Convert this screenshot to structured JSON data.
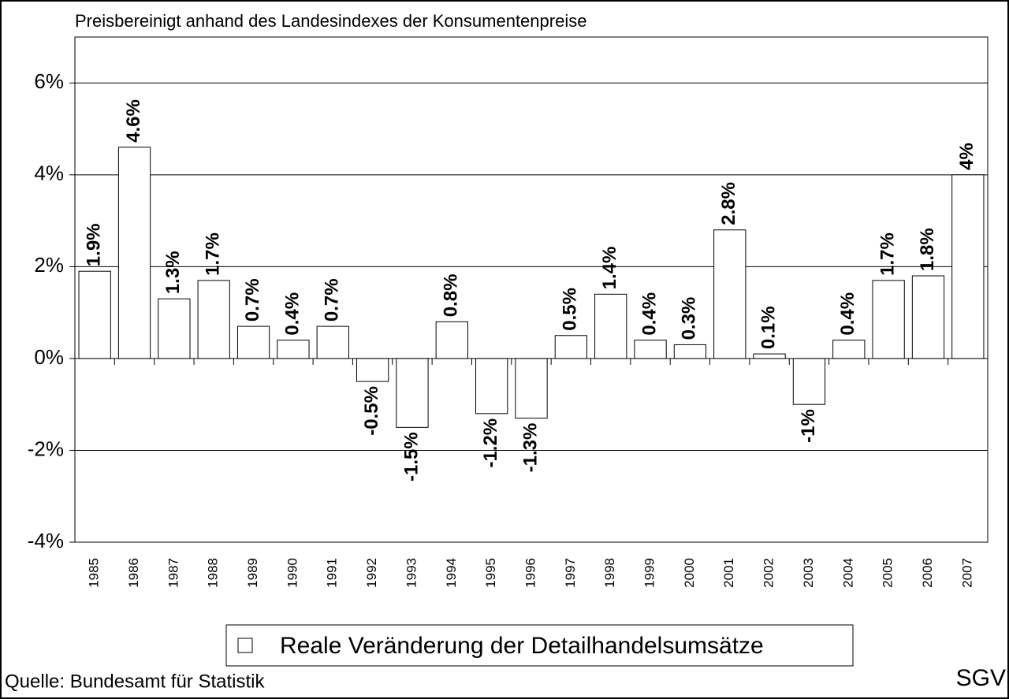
{
  "chart_data": {
    "type": "bar",
    "subtitle": "Preisbereinigt anhand des Landesindexes der Konsumentenpreise",
    "categories": [
      "1985",
      "1986",
      "1987",
      "1988",
      "1989",
      "1990",
      "1991",
      "1992",
      "1993",
      "1994",
      "1995",
      "1996",
      "1997",
      "1998",
      "1999",
      "2000",
      "2001",
      "2002",
      "2003",
      "2004",
      "2005",
      "2006",
      "2007"
    ],
    "series": [
      {
        "name": "Reale Veränderung der Detailhandelsumsätze",
        "color": "#ffffff",
        "values": [
          1.9,
          4.6,
          1.3,
          1.7,
          0.7,
          0.4,
          0.7,
          -0.5,
          -1.5,
          0.8,
          -1.2,
          -1.3,
          0.5,
          1.4,
          0.4,
          0.3,
          2.8,
          0.1,
          -1,
          0.4,
          1.7,
          1.8,
          4
        ],
        "value_labels": [
          "1.9%",
          "4.6%",
          "1.3%",
          "1.7%",
          "0.7%",
          "0.4%",
          "0.7%",
          "-0.5%",
          "-1.5%",
          "0.8%",
          "-1.2%",
          "-1.3%",
          "0.5%",
          "1.4%",
          "0.4%",
          "0.3%",
          "2.8%",
          "0.1%",
          "-1%",
          "0.4%",
          "1.7%",
          "1.8%",
          "4%"
        ]
      }
    ],
    "ylim": [
      -4,
      7
    ],
    "yticks": [
      {
        "value": -4,
        "label": "-4%"
      },
      {
        "value": -2,
        "label": "-2%"
      },
      {
        "value": 0,
        "label": "0%"
      },
      {
        "value": 2,
        "label": "2%"
      },
      {
        "value": 4,
        "label": "4%"
      },
      {
        "value": 6,
        "label": "6%"
      }
    ],
    "grid": true,
    "legend": "bottom",
    "source": "Quelle: Bundesamt für Statistik",
    "logo": "SGV"
  }
}
